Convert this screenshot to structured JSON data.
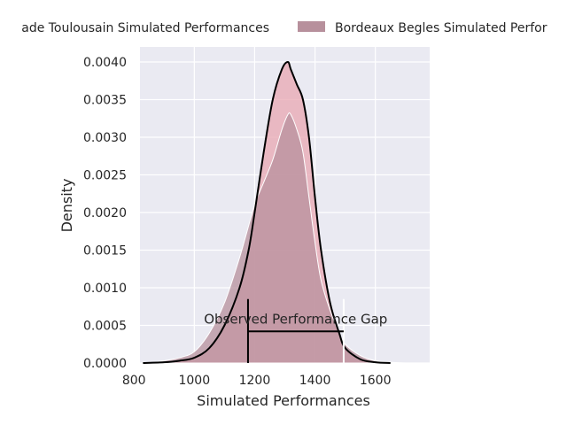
{
  "chart_data": {
    "type": "area",
    "xlabel": "Simulated Performances",
    "ylabel": "Density",
    "xlim": [
      820,
      1780
    ],
    "ylim": [
      0,
      0.0042
    ],
    "x_ticks": [
      800,
      1000,
      1200,
      1400,
      1600
    ],
    "y_ticks": [
      0.0,
      0.0005,
      0.001,
      0.0015,
      0.002,
      0.0025,
      0.003,
      0.0035,
      0.004
    ],
    "y_tick_labels": [
      "0.0000",
      "0.0005",
      "0.0010",
      "0.0015",
      "0.0020",
      "0.0025",
      "0.0030",
      "0.0035",
      "0.0040"
    ],
    "grid": true,
    "legend_position": "top",
    "series": [
      {
        "name": "Stade Toulousain Simulated Performances",
        "legend_label_visible": "ade Toulousain Simulated Performances",
        "color": "#e8a7b1",
        "x": [
          830,
          900,
          950,
          1000,
          1050,
          1100,
          1150,
          1180,
          1200,
          1230,
          1260,
          1290,
          1310,
          1320,
          1340,
          1360,
          1380,
          1400,
          1420,
          1450,
          1480,
          1500,
          1550,
          1600,
          1650
        ],
        "y": [
          0,
          1e-05,
          3e-05,
          7e-05,
          0.0002,
          0.0005,
          0.001,
          0.0015,
          0.002,
          0.0028,
          0.0035,
          0.0039,
          0.004,
          0.0039,
          0.0037,
          0.0035,
          0.003,
          0.0022,
          0.0015,
          0.0008,
          0.0004,
          0.0002,
          5e-05,
          1e-05,
          0
        ]
      },
      {
        "name": "Bordeaux Begles Simulated Performances",
        "legend_label_visible": "Bordeaux Begles Simulated Perfor",
        "color": "#b7909c",
        "x": [
          850,
          900,
          950,
          1000,
          1050,
          1100,
          1150,
          1200,
          1230,
          1260,
          1290,
          1310,
          1320,
          1340,
          1360,
          1380,
          1400,
          1420,
          1450,
          1480,
          1500,
          1550,
          1600,
          1650,
          1700,
          1760
        ],
        "y": [
          0,
          3e-05,
          7e-05,
          0.00015,
          0.0004,
          0.0008,
          0.0014,
          0.0021,
          0.0024,
          0.0027,
          0.0031,
          0.0033,
          0.0033,
          0.0031,
          0.0028,
          0.0022,
          0.0016,
          0.0011,
          0.0007,
          0.0004,
          0.00025,
          0.0001,
          3e-05,
          1e-05,
          0,
          0
        ]
      }
    ],
    "observed_kde": {
      "x": [
        830,
        900,
        950,
        1000,
        1050,
        1100,
        1150,
        1180,
        1200,
        1230,
        1260,
        1290,
        1310,
        1320,
        1340,
        1360,
        1380,
        1400,
        1420,
        1450,
        1480,
        1500,
        1550,
        1600,
        1650
      ],
      "y": [
        0,
        1e-05,
        3e-05,
        7e-05,
        0.0002,
        0.0005,
        0.001,
        0.0015,
        0.002,
        0.0028,
        0.0035,
        0.0039,
        0.004,
        0.0039,
        0.0037,
        0.0035,
        0.003,
        0.0022,
        0.0015,
        0.0008,
        0.0004,
        0.0002,
        5e-05,
        1e-05,
        0
      ]
    },
    "markers": [
      {
        "x": 1178,
        "y0": 0,
        "y1": 0.00085,
        "color": "#000000"
      },
      {
        "x": 1495,
        "y0": 0,
        "y1": 0.00085,
        "color": "#ffffff"
      }
    ],
    "gap": {
      "x0": 1178,
      "x1": 1495,
      "y": 0.00042
    },
    "annotation": {
      "text": "Observed Performance Gap",
      "x": 1336,
      "y": 0.0005
    }
  },
  "colors": {
    "plot_bg": "#eaeaf2",
    "grid": "#ffffff",
    "line": "#000000",
    "text": "#262626"
  }
}
